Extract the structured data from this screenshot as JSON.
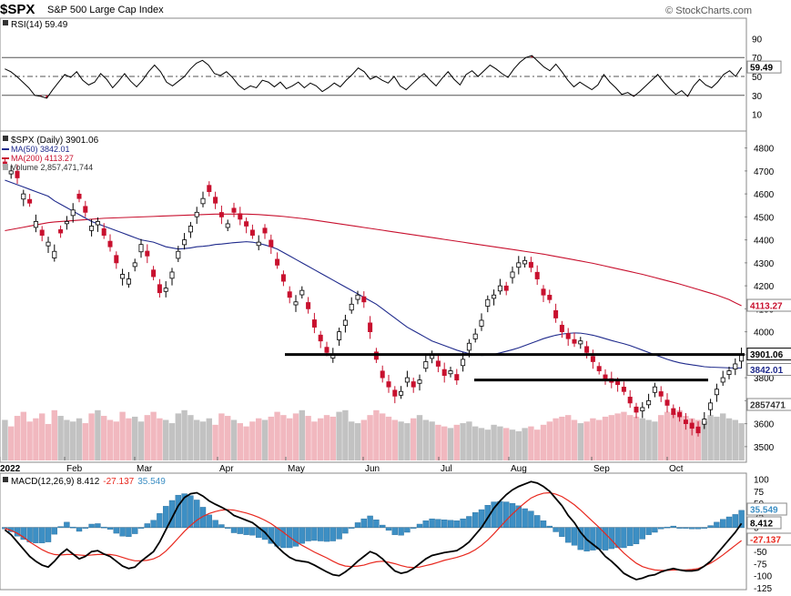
{
  "header": {
    "symbol": "$SPX",
    "name": "S&P 500 Large Cap Index",
    "credit": "© StockCharts.com"
  },
  "colors": {
    "up": "#ffffff",
    "down": "#c8102e",
    "ma50": "#1f2a8c",
    "ma200": "#c8102e",
    "vol_up": "#c2c2c2",
    "vol_down": "#f1b8bf",
    "hist": "#3d8fc4",
    "signal": "#e8281e",
    "macd": "#000000"
  },
  "chart_data": [
    {
      "type": "line",
      "panel": "rsi",
      "legend": "RSI(14) 59.49",
      "value_tag": "59.49",
      "ylim": [
        0,
        100
      ],
      "yticks": [
        10,
        30,
        50,
        70,
        90
      ],
      "ref_lines": [
        30,
        50,
        70
      ],
      "values": [
        58,
        55,
        50,
        44,
        38,
        30,
        29,
        27,
        36,
        44,
        52,
        49,
        55,
        46,
        41,
        44,
        53,
        47,
        38,
        45,
        53,
        45,
        39,
        46,
        55,
        62,
        55,
        44,
        40,
        45,
        50,
        58,
        64,
        67,
        62,
        53,
        51,
        55,
        49,
        41,
        36,
        40,
        38,
        46,
        44,
        39,
        44,
        37,
        40,
        44,
        38,
        43,
        40,
        34,
        38,
        43,
        39,
        46,
        52,
        59,
        55,
        47,
        50,
        46,
        43,
        50,
        40,
        36,
        42,
        48,
        53,
        46,
        40,
        48,
        55,
        47,
        41,
        52,
        56,
        50,
        56,
        62,
        58,
        53,
        49,
        58,
        65,
        70,
        72,
        66,
        60,
        56,
        63,
        55,
        46,
        39,
        44,
        40,
        36,
        41,
        52,
        44,
        38,
        31,
        33,
        29,
        34,
        40,
        46,
        52,
        44,
        37,
        31,
        35,
        29,
        40,
        47,
        41,
        38,
        44,
        52,
        56,
        50,
        59.49
      ]
    },
    {
      "type": "candlestick",
      "panel": "price",
      "legend": {
        "title": "$SPX (Daily) 3901.06",
        "ma50": "MA(50) 3842.01",
        "ma200": "MA(200) 4113.27",
        "volume": "Volume 2,857,471,744"
      },
      "ylim": [
        3440,
        4850
      ],
      "yticks": [
        3500,
        3600,
        3700,
        3800,
        3900,
        4000,
        4100,
        4200,
        4300,
        4400,
        4500,
        4600,
        4700,
        4800
      ],
      "x_labels": [
        "2022",
        "Feb",
        "Mar",
        "Apr",
        "May",
        "Jun",
        "Jul",
        "Aug",
        "Sep",
        "Oct"
      ],
      "support_lines": [
        3901,
        3790
      ],
      "value_tags": {
        "close": "3901.06",
        "ma50": "3842.01",
        "ma200": "4113.27",
        "volume": "2857471"
      },
      "close": [
        4720,
        4700,
        4670,
        4600,
        4560,
        4480,
        4420,
        4390,
        4350,
        4430,
        4480,
        4530,
        4580,
        4520,
        4460,
        4480,
        4420,
        4370,
        4300,
        4250,
        4230,
        4300,
        4380,
        4330,
        4240,
        4170,
        4190,
        4260,
        4350,
        4400,
        4460,
        4520,
        4580,
        4610,
        4560,
        4500,
        4470,
        4520,
        4490,
        4460,
        4420,
        4390,
        4430,
        4370,
        4290,
        4220,
        4150,
        4130,
        4180,
        4100,
        4020,
        3960,
        3910,
        3900,
        4000,
        4050,
        4120,
        4160,
        4130,
        4000,
        3880,
        3800,
        3760,
        3720,
        3740,
        3800,
        3760,
        3790,
        3870,
        3900,
        3850,
        3810,
        3830,
        3790,
        3880,
        3950,
        3990,
        4050,
        4140,
        4160,
        4200,
        4180,
        4260,
        4300,
        4310,
        4280,
        4230,
        4160,
        4140,
        4060,
        4000,
        3970,
        3950,
        3960,
        3910,
        3870,
        3830,
        3790,
        3780,
        3770,
        3740,
        3690,
        3650,
        3670,
        3700,
        3760,
        3720,
        3680,
        3640,
        3630,
        3600,
        3580,
        3560,
        3620,
        3690,
        3750,
        3800,
        3830,
        3860,
        3901.06
      ],
      "ma50": [
        4660,
        4650,
        4640,
        4630,
        4620,
        4610,
        4600,
        4590,
        4570,
        4555,
        4540,
        4525,
        4510,
        4495,
        4480,
        4470,
        4460,
        4450,
        4440,
        4430,
        4420,
        4410,
        4400,
        4395,
        4390,
        4380,
        4370,
        4365,
        4360,
        4362,
        4365,
        4370,
        4372,
        4375,
        4380,
        4382,
        4385,
        4388,
        4390,
        4392,
        4390,
        4385,
        4378,
        4370,
        4360,
        4345,
        4330,
        4315,
        4300,
        4285,
        4270,
        4255,
        4240,
        4225,
        4210,
        4195,
        4180,
        4165,
        4150,
        4135,
        4120,
        4100,
        4080,
        4060,
        4040,
        4020,
        4005,
        3990,
        3975,
        3960,
        3950,
        3940,
        3930,
        3920,
        3912,
        3905,
        3900,
        3897,
        3898,
        3902,
        3908,
        3915,
        3922,
        3930,
        3940,
        3950,
        3960,
        3970,
        3978,
        3985,
        3990,
        3993,
        3995,
        3994,
        3990,
        3985,
        3978,
        3970,
        3962,
        3955,
        3948,
        3940,
        3930,
        3920,
        3910,
        3900,
        3890,
        3880,
        3872,
        3865,
        3860,
        3856,
        3852,
        3848,
        3846,
        3845,
        3844,
        3843,
        3842.5,
        3842.01
      ],
      "ma200": [
        4440,
        4445,
        4450,
        4455,
        4460,
        4465,
        4470,
        4475,
        4478,
        4480,
        4482,
        4484,
        4486,
        4488,
        4490,
        4492,
        4494,
        4495,
        4496,
        4497,
        4498,
        4499,
        4500,
        4501,
        4502,
        4503,
        4504,
        4505,
        4506,
        4507,
        4508,
        4509,
        4510,
        4511,
        4512,
        4512,
        4512,
        4512,
        4512,
        4512,
        4511,
        4510,
        4508,
        4506,
        4504,
        4502,
        4499,
        4496,
        4493,
        4490,
        4486,
        4482,
        4478,
        4474,
        4470,
        4466,
        4462,
        4458,
        4454,
        4450,
        4446,
        4442,
        4438,
        4434,
        4430,
        4426,
        4422,
        4418,
        4414,
        4410,
        4406,
        4402,
        4398,
        4394,
        4390,
        4386,
        4382,
        4378,
        4374,
        4370,
        4366,
        4362,
        4358,
        4354,
        4350,
        4346,
        4342,
        4338,
        4333,
        4328,
        4323,
        4318,
        4313,
        4308,
        4303,
        4298,
        4292,
        4286,
        4280,
        4274,
        4268,
        4262,
        4256,
        4250,
        4243,
        4236,
        4229,
        4222,
        4215,
        4208,
        4200,
        4192,
        4184,
        4176,
        4168,
        4160,
        4150,
        4140,
        4126,
        4113.27
      ],
      "volume_pct": [
        50,
        42,
        55,
        60,
        48,
        52,
        58,
        45,
        62,
        55,
        50,
        48,
        52,
        46,
        58,
        62,
        55,
        50,
        48,
        60,
        52,
        54,
        48,
        56,
        60,
        52,
        50,
        46,
        58,
        62,
        56,
        50,
        48,
        52,
        44,
        58,
        55,
        50,
        46,
        42,
        48,
        52,
        50,
        54,
        60,
        56,
        52,
        58,
        62,
        55,
        48,
        52,
        56,
        54,
        60,
        62,
        48,
        46,
        50,
        56,
        62,
        58,
        54,
        50,
        48,
        46,
        52,
        56,
        50,
        48,
        44,
        42,
        40,
        44,
        46,
        48,
        42,
        40,
        38,
        44,
        42,
        40,
        38,
        36,
        40,
        42,
        38,
        44,
        48,
        52,
        54,
        56,
        50,
        46,
        48,
        52,
        50,
        54,
        56,
        58,
        60,
        56,
        54,
        52,
        50,
        48,
        56,
        60,
        58,
        62,
        55,
        52,
        50,
        48,
        56,
        54,
        58,
        52,
        50,
        46
      ],
      "open_offsets": [
        12,
        -8,
        18,
        -14,
        10,
        -16,
        14,
        -10,
        -18,
        9,
        -6,
        -15,
        12,
        16,
        -12,
        -9,
        18,
        15,
        20,
        -11,
        -14,
        -10,
        -20,
        13,
        18,
        22,
        -9,
        -17,
        -19,
        -13,
        -16,
        -12,
        -14,
        17,
        16,
        12,
        -10,
        11,
        15,
        12,
        14,
        -9,
        13,
        18,
        16,
        18,
        15,
        -8,
        -12,
        17,
        20,
        16,
        14,
        -9,
        -22,
        -14,
        -16,
        -12,
        14,
        24,
        20,
        18,
        14,
        16,
        -10,
        -12,
        14,
        -9,
        -18,
        -10,
        14,
        16,
        -8,
        15,
        -17,
        -19,
        -13,
        -16,
        -18,
        -9,
        -14,
        12,
        -15,
        -12,
        -9,
        14,
        18,
        16,
        12,
        20,
        18,
        14,
        10,
        -8,
        16,
        14,
        12,
        14,
        10,
        8,
        12,
        16,
        14,
        -9,
        -11,
        -15,
        12,
        14,
        16,
        12,
        10,
        14,
        16,
        -14,
        -18,
        -15,
        -12,
        -10,
        -14,
        -18
      ]
    },
    {
      "type": "line",
      "panel": "macd",
      "legend": {
        "macd": "MACD(12,26,9) 8.412",
        "signal": "-27.137",
        "hist": "35.549"
      },
      "value_tags": {
        "hist": "35.549",
        "macd": "8.412",
        "signal": "-27.137"
      },
      "ylim": [
        -125,
        105
      ],
      "yticks": [
        100,
        75,
        50,
        25,
        0,
        -25,
        -50,
        -75,
        -100,
        -125
      ],
      "macd": [
        -5,
        -15,
        -30,
        -45,
        -60,
        -70,
        -78,
        -82,
        -70,
        -55,
        -45,
        -55,
        -65,
        -60,
        -50,
        -48,
        -55,
        -60,
        -70,
        -80,
        -85,
        -82,
        -70,
        -60,
        -50,
        -30,
        -5,
        20,
        45,
        62,
        70,
        72,
        65,
        55,
        48,
        42,
        35,
        25,
        20,
        15,
        10,
        0,
        -10,
        -25,
        -40,
        -52,
        -62,
        -68,
        -70,
        -72,
        -78,
        -85,
        -92,
        -98,
        -100,
        -92,
        -82,
        -70,
        -60,
        -50,
        -55,
        -65,
        -78,
        -90,
        -95,
        -92,
        -85,
        -75,
        -65,
        -58,
        -55,
        -52,
        -50,
        -48,
        -40,
        -30,
        -15,
        0,
        20,
        40,
        55,
        68,
        78,
        85,
        90,
        95,
        92,
        85,
        75,
        60,
        45,
        25,
        10,
        -10,
        -25,
        -35,
        -45,
        -60,
        -70,
        -82,
        -95,
        -102,
        -108,
        -105,
        -100,
        -98,
        -92,
        -88,
        -85,
        -88,
        -90,
        -90,
        -88,
        -80,
        -70,
        -55,
        -40,
        -25,
        -10,
        8.412
      ],
      "signal": [
        -2,
        -6,
        -12,
        -20,
        -30,
        -38,
        -46,
        -52,
        -56,
        -57,
        -56,
        -56,
        -57,
        -58,
        -57,
        -56,
        -56,
        -56,
        -58,
        -62,
        -66,
        -69,
        -69,
        -68,
        -65,
        -59,
        -49,
        -36,
        -22,
        -8,
        4,
        15,
        23,
        29,
        33,
        36,
        37,
        36,
        33,
        30,
        26,
        21,
        15,
        8,
        -1,
        -10,
        -20,
        -29,
        -37,
        -44,
        -51,
        -57,
        -63,
        -70,
        -76,
        -80,
        -81,
        -80,
        -78,
        -74,
        -71,
        -70,
        -72,
        -75,
        -79,
        -82,
        -83,
        -82,
        -79,
        -76,
        -72,
        -68,
        -65,
        -62,
        -58,
        -53,
        -46,
        -37,
        -26,
        -13,
        1,
        15,
        28,
        40,
        51,
        61,
        67,
        71,
        72,
        69,
        64,
        56,
        47,
        36,
        24,
        12,
        0,
        -13,
        -26,
        -40,
        -53,
        -64,
        -74,
        -81,
        -85,
        -88,
        -89,
        -89,
        -88,
        -88,
        -88,
        -87,
        -85,
        -80,
        -74,
        -66,
        -57,
        -47,
        -37,
        -27.137
      ],
      "hist_value": 35.549
    }
  ]
}
